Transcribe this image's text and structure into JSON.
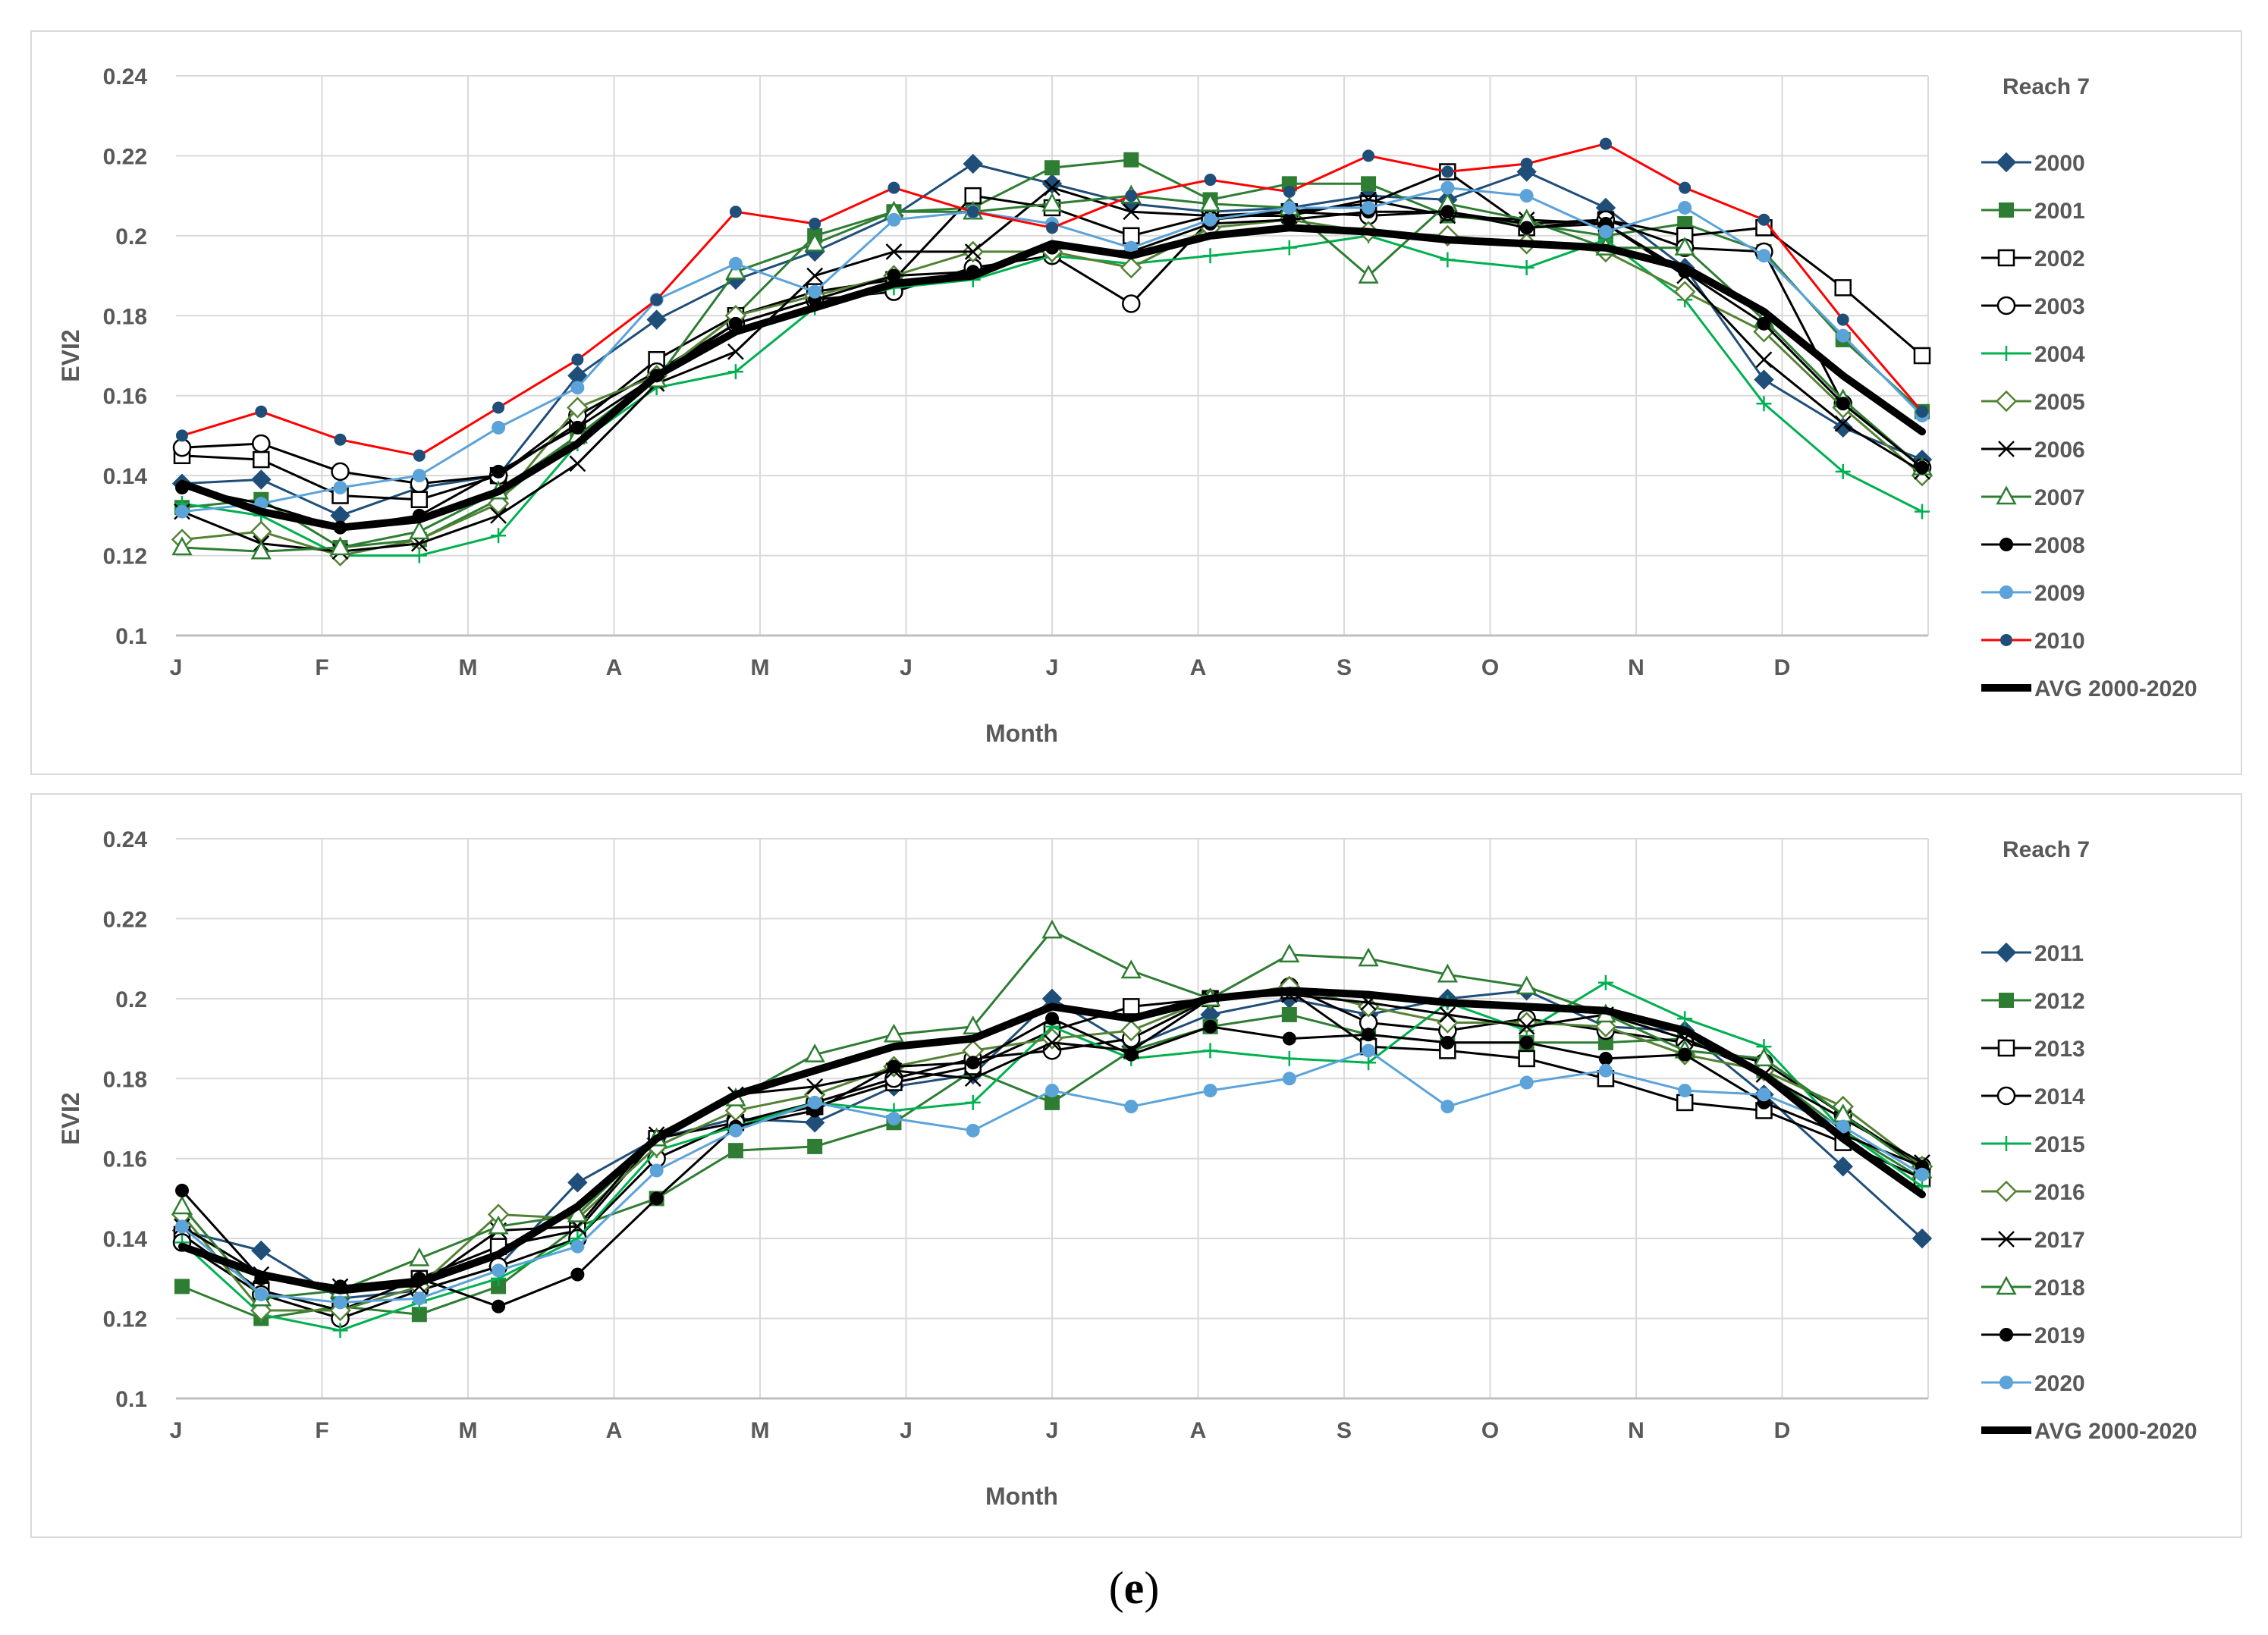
{
  "caption": {
    "open": "(",
    "letter": "e",
    "close": ")"
  },
  "colors": {
    "dark_blue": "#1f4e79",
    "dark_green": "#2e7d32",
    "black": "#000000",
    "green": "#00b050",
    "olive_green": "#548235",
    "red": "#ff0000",
    "light_blue": "#5ba3d9",
    "grid": "#d9d9d9",
    "axis_text": "#595959"
  },
  "chart_data": [
    {
      "type": "line",
      "title": "Reach 7",
      "xlabel": "Month",
      "ylabel": "EVI2",
      "ylim": [
        0.1,
        0.24
      ],
      "yticks": [
        "0.1",
        "0.12",
        "0.14",
        "0.16",
        "0.18",
        "0.2",
        "0.22",
        "0.24"
      ],
      "month_labels": [
        "J",
        "F",
        "M",
        "A",
        "M",
        "J",
        "J",
        "A",
        "S",
        "O",
        "N",
        "D"
      ],
      "x": [
        1,
        17,
        33,
        49,
        65,
        81,
        97,
        113,
        129,
        145,
        161,
        177,
        193,
        209,
        225,
        241,
        257,
        273,
        289,
        305,
        321,
        337,
        353
      ],
      "grid": true,
      "legend_position": "right",
      "series": [
        {
          "name": "2000",
          "color": "#1f4e79",
          "marker": "diamond-filled",
          "values": [
            0.138,
            0.139,
            0.13,
            0.137,
            0.14,
            0.165,
            0.179,
            0.189,
            0.196,
            0.205,
            0.218,
            0.213,
            0.208,
            0.206,
            0.207,
            0.21,
            0.209,
            0.216,
            0.207,
            0.192,
            0.164,
            0.152,
            0.144
          ]
        },
        {
          "name": "2001",
          "color": "#2e7d32",
          "marker": "square-filled",
          "values": [
            0.132,
            0.134,
            0.122,
            0.124,
            0.134,
            0.15,
            0.165,
            0.18,
            0.2,
            0.206,
            0.207,
            0.217,
            0.219,
            0.209,
            0.213,
            0.213,
            0.205,
            0.203,
            0.2,
            0.203,
            0.196,
            0.174,
            0.156
          ]
        },
        {
          "name": "2002",
          "color": "#000000",
          "marker": "square-open",
          "values": [
            0.145,
            0.144,
            0.135,
            0.134,
            0.14,
            0.153,
            0.169,
            0.18,
            0.186,
            0.189,
            0.21,
            0.207,
            0.2,
            0.205,
            0.206,
            0.208,
            0.216,
            0.202,
            0.204,
            0.2,
            0.202,
            0.187,
            0.17
          ]
        },
        {
          "name": "2003",
          "color": "#000000",
          "marker": "circle-open",
          "values": [
            0.147,
            0.148,
            0.141,
            0.138,
            0.14,
            0.155,
            0.166,
            0.178,
            0.184,
            0.186,
            0.192,
            0.195,
            0.183,
            0.204,
            0.206,
            0.205,
            0.206,
            0.203,
            0.204,
            0.197,
            0.196,
            0.158,
            0.142
          ]
        },
        {
          "name": "2004",
          "color": "#00b050",
          "marker": "plus",
          "values": [
            0.133,
            0.13,
            0.12,
            0.12,
            0.125,
            0.148,
            0.162,
            0.166,
            0.182,
            0.187,
            0.189,
            0.195,
            0.193,
            0.195,
            0.197,
            0.2,
            0.194,
            0.192,
            0.199,
            0.184,
            0.158,
            0.141,
            0.131
          ]
        },
        {
          "name": "2005",
          "color": "#548235",
          "marker": "diamond-open",
          "values": [
            0.124,
            0.126,
            0.12,
            0.124,
            0.133,
            0.157,
            0.165,
            0.18,
            0.185,
            0.19,
            0.196,
            0.196,
            0.192,
            0.202,
            0.204,
            0.201,
            0.2,
            0.198,
            0.196,
            0.186,
            0.176,
            0.157,
            0.14
          ]
        },
        {
          "name": "2006",
          "color": "#000000",
          "marker": "x",
          "values": [
            0.131,
            0.123,
            0.121,
            0.123,
            0.13,
            0.143,
            0.163,
            0.171,
            0.19,
            0.196,
            0.196,
            0.212,
            0.206,
            0.205,
            0.205,
            0.209,
            0.205,
            0.204,
            0.203,
            0.19,
            0.169,
            0.153,
            0.141
          ]
        },
        {
          "name": "2007",
          "color": "#2e7d32",
          "marker": "triangle-open",
          "values": [
            0.122,
            0.121,
            0.122,
            0.126,
            0.136,
            0.15,
            0.164,
            0.191,
            0.198,
            0.206,
            0.206,
            0.208,
            0.21,
            0.208,
            0.207,
            0.19,
            0.208,
            0.204,
            0.197,
            0.197,
            0.179,
            0.159,
            0.142
          ]
        },
        {
          "name": "2008",
          "color": "#000000",
          "marker": "circle-filled",
          "values": [
            0.137,
            0.133,
            0.127,
            0.13,
            0.141,
            0.152,
            0.165,
            0.178,
            0.184,
            0.19,
            0.191,
            0.197,
            0.196,
            0.203,
            0.204,
            0.206,
            0.206,
            0.202,
            0.203,
            0.191,
            0.178,
            0.158,
            0.142
          ]
        },
        {
          "name": "2009",
          "color": "#5ba3d9",
          "marker": "circle-filled",
          "values": [
            0.131,
            0.133,
            0.137,
            0.14,
            0.152,
            0.162,
            0.184,
            0.193,
            0.186,
            0.204,
            0.206,
            0.203,
            0.197,
            0.204,
            0.207,
            0.207,
            0.212,
            0.21,
            0.201,
            0.207,
            0.195,
            0.175,
            0.155
          ]
        },
        {
          "name": "2010",
          "color": "#ff0000",
          "marker": "circle-filled-blue",
          "values": [
            0.15,
            0.156,
            0.149,
            0.145,
            0.157,
            0.169,
            0.184,
            0.206,
            0.203,
            0.212,
            0.206,
            0.202,
            0.21,
            0.214,
            0.211,
            0.22,
            0.216,
            0.218,
            0.223,
            0.212,
            0.204,
            0.179,
            0.156
          ]
        },
        {
          "name": "AVG 2000-2020",
          "color": "#000000",
          "marker": "none",
          "thick": true,
          "values": [
            0.138,
            0.131,
            0.127,
            0.129,
            0.136,
            0.148,
            0.165,
            0.176,
            0.182,
            0.188,
            0.19,
            0.198,
            0.195,
            0.2,
            0.202,
            0.201,
            0.199,
            0.198,
            0.197,
            0.192,
            0.181,
            0.165,
            0.151
          ]
        }
      ]
    },
    {
      "type": "line",
      "title": "Reach 7",
      "xlabel": "Month",
      "ylabel": "EVI2",
      "ylim": [
        0.1,
        0.24
      ],
      "yticks": [
        "0.1",
        "0.12",
        "0.14",
        "0.16",
        "0.18",
        "0.2",
        "0.22",
        "0.24"
      ],
      "month_labels": [
        "J",
        "F",
        "M",
        "A",
        "M",
        "J",
        "J",
        "A",
        "S",
        "O",
        "N",
        "D"
      ],
      "x": [
        1,
        17,
        33,
        49,
        65,
        81,
        97,
        113,
        129,
        145,
        161,
        177,
        193,
        209,
        225,
        241,
        257,
        273,
        289,
        305,
        321,
        337,
        353
      ],
      "grid": true,
      "legend_position": "right",
      "series": [
        {
          "name": "2011",
          "color": "#1f4e79",
          "marker": "diamond-filled",
          "values": [
            0.142,
            0.137,
            0.125,
            0.127,
            0.133,
            0.154,
            0.165,
            0.17,
            0.169,
            0.178,
            0.181,
            0.2,
            0.188,
            0.196,
            0.2,
            0.196,
            0.2,
            0.202,
            0.193,
            0.192,
            0.176,
            0.158,
            0.14
          ]
        },
        {
          "name": "2012",
          "color": "#2e7d32",
          "marker": "square-filled",
          "values": [
            0.128,
            0.12,
            0.123,
            0.121,
            0.128,
            0.143,
            0.15,
            0.162,
            0.163,
            0.169,
            0.182,
            0.174,
            0.187,
            0.193,
            0.196,
            0.191,
            0.189,
            0.189,
            0.189,
            0.19,
            0.182,
            0.167,
            0.155
          ]
        },
        {
          "name": "2013",
          "color": "#000000",
          "marker": "square-open",
          "values": [
            0.141,
            0.127,
            0.122,
            0.13,
            0.138,
            0.142,
            0.165,
            0.169,
            0.173,
            0.179,
            0.183,
            0.192,
            0.198,
            0.2,
            0.202,
            0.188,
            0.187,
            0.185,
            0.18,
            0.174,
            0.172,
            0.164,
            0.155
          ]
        },
        {
          "name": "2014",
          "color": "#000000",
          "marker": "circle-open",
          "values": [
            0.139,
            0.126,
            0.12,
            0.127,
            0.133,
            0.14,
            0.16,
            0.169,
            0.174,
            0.18,
            0.185,
            0.187,
            0.19,
            0.2,
            0.203,
            0.194,
            0.192,
            0.195,
            0.192,
            0.189,
            0.184,
            0.171,
            0.158
          ]
        },
        {
          "name": "2015",
          "color": "#00b050",
          "marker": "plus",
          "values": [
            0.139,
            0.121,
            0.117,
            0.124,
            0.13,
            0.14,
            0.162,
            0.168,
            0.174,
            0.172,
            0.174,
            0.193,
            0.185,
            0.187,
            0.185,
            0.184,
            0.199,
            0.192,
            0.204,
            0.195,
            0.188,
            0.167,
            0.153
          ]
        },
        {
          "name": "2016",
          "color": "#548235",
          "marker": "diamond-open",
          "values": [
            0.146,
            0.122,
            0.122,
            0.128,
            0.146,
            0.145,
            0.163,
            0.172,
            0.176,
            0.183,
            0.187,
            0.19,
            0.192,
            0.2,
            0.203,
            0.198,
            0.194,
            0.194,
            0.193,
            0.186,
            0.182,
            0.173,
            0.158
          ]
        },
        {
          "name": "2017",
          "color": "#000000",
          "marker": "x",
          "values": [
            0.143,
            0.131,
            0.128,
            0.128,
            0.142,
            0.143,
            0.166,
            0.176,
            0.178,
            0.182,
            0.18,
            0.189,
            0.187,
            0.2,
            0.201,
            0.199,
            0.196,
            0.193,
            0.196,
            0.19,
            0.181,
            0.17,
            0.159
          ]
        },
        {
          "name": "2018",
          "color": "#2e7d32",
          "marker": "triangle-open",
          "values": [
            0.148,
            0.125,
            0.127,
            0.135,
            0.143,
            0.146,
            0.165,
            0.175,
            0.186,
            0.191,
            0.193,
            0.217,
            0.207,
            0.2,
            0.211,
            0.21,
            0.206,
            0.203,
            0.196,
            0.187,
            0.185,
            0.171,
            0.157
          ]
        },
        {
          "name": "2019",
          "color": "#000000",
          "marker": "circle-filled",
          "values": [
            0.152,
            0.13,
            0.128,
            0.13,
            0.123,
            0.131,
            0.15,
            0.168,
            0.172,
            0.183,
            0.184,
            0.195,
            0.186,
            0.193,
            0.19,
            0.191,
            0.189,
            0.189,
            0.185,
            0.186,
            0.174,
            0.166,
            0.158
          ]
        },
        {
          "name": "2020",
          "color": "#5ba3d9",
          "marker": "circle-filled",
          "values": [
            0.143,
            0.126,
            0.124,
            0.125,
            0.132,
            0.138,
            0.157,
            0.167,
            0.174,
            0.17,
            0.167,
            0.177,
            0.173,
            0.177,
            0.18,
            0.187,
            0.173,
            0.179,
            0.182,
            0.177,
            0.176,
            0.168,
            0.156
          ]
        },
        {
          "name": "AVG 2000-2020",
          "color": "#000000",
          "marker": "none",
          "thick": true,
          "values": [
            0.138,
            0.131,
            0.127,
            0.129,
            0.136,
            0.148,
            0.165,
            0.176,
            0.182,
            0.188,
            0.19,
            0.198,
            0.195,
            0.2,
            0.202,
            0.201,
            0.199,
            0.198,
            0.197,
            0.192,
            0.181,
            0.165,
            0.151
          ]
        }
      ]
    }
  ]
}
